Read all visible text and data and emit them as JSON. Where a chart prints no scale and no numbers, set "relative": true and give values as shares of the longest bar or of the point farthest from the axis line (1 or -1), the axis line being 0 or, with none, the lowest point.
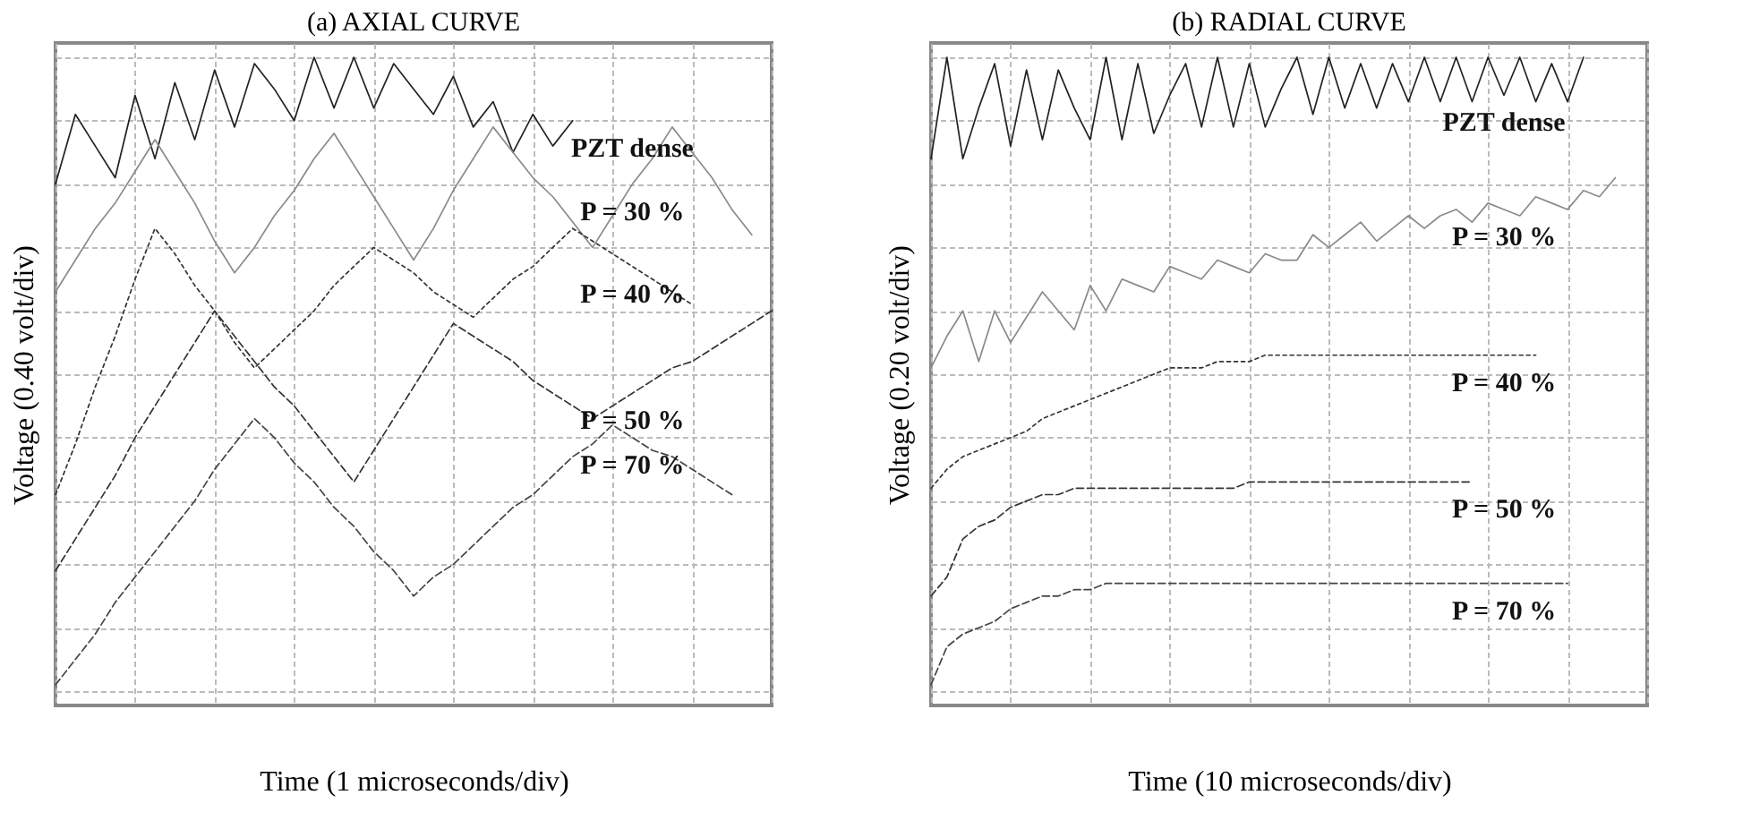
{
  "chart_data": [
    {
      "type": "line",
      "title": "(a)      AXIAL CURVE",
      "xlabel": "Time (1 microseconds/div)",
      "ylabel": "Voltage (0.40 volt/div)",
      "relative": true,
      "grid": true,
      "categories": [
        null,
        null,
        null,
        null,
        null,
        null,
        null,
        null,
        null,
        null,
        null,
        null,
        null,
        null,
        null,
        null,
        null,
        null,
        null,
        null,
        null,
        null,
        null,
        null,
        null,
        null,
        null,
        null,
        null,
        null,
        null,
        null,
        null,
        null,
        null,
        null,
        null
      ],
      "series": [
        {
          "name": "PZT dense",
          "color": "#222222",
          "line_style": "solid",
          "values": [
            0.8,
            0.91,
            0.86,
            0.81,
            0.94,
            0.84,
            0.96,
            0.87,
            0.98,
            0.89,
            0.99,
            0.95,
            0.9,
            1.0,
            0.92,
            1.0,
            0.92,
            0.99,
            0.95,
            0.91,
            0.97,
            0.89,
            0.93,
            0.85,
            0.91,
            0.86,
            0.9,
            null,
            null,
            null,
            null,
            null,
            null,
            null,
            null,
            null,
            null
          ]
        },
        {
          "name": "P = 30 %",
          "color": "#8a8a8a",
          "line_style": "solid",
          "values": [
            0.63,
            0.68,
            0.73,
            0.77,
            0.82,
            0.87,
            0.82,
            0.77,
            0.71,
            0.66,
            0.7,
            0.75,
            0.79,
            0.84,
            0.88,
            0.83,
            0.78,
            0.73,
            0.68,
            0.73,
            0.79,
            0.84,
            0.89,
            0.85,
            0.81,
            0.78,
            0.74,
            0.7,
            0.75,
            0.8,
            0.84,
            0.89,
            0.85,
            0.81,
            0.76,
            0.72,
            null
          ]
        },
        {
          "name": "P = 40 %",
          "color": "#333333",
          "line_style": "dotted",
          "values": [
            0.31,
            0.39,
            0.48,
            0.56,
            0.65,
            0.73,
            0.69,
            0.64,
            0.6,
            0.55,
            0.51,
            0.54,
            0.57,
            0.6,
            0.64,
            0.67,
            0.7,
            0.68,
            0.66,
            0.63,
            0.61,
            0.59,
            0.62,
            0.65,
            0.67,
            0.7,
            0.73,
            0.71,
            0.69,
            0.67,
            0.65,
            0.63,
            0.61,
            null,
            null,
            null,
            null
          ]
        },
        {
          "name": "P = 50 %",
          "color": "#333333",
          "line_style": "dashed",
          "values": [
            0.19,
            0.24,
            0.29,
            0.34,
            0.4,
            0.45,
            0.5,
            0.55,
            0.6,
            0.56,
            0.52,
            0.48,
            0.45,
            0.41,
            0.37,
            0.33,
            0.38,
            0.43,
            0.48,
            0.53,
            0.58,
            0.56,
            0.54,
            0.52,
            0.49,
            0.47,
            0.45,
            0.43,
            0.45,
            0.47,
            0.49,
            0.51,
            0.52,
            0.54,
            0.56,
            0.58,
            0.6
          ]
        },
        {
          "name": "P = 70 %",
          "color": "#444444",
          "line_style": "dashed",
          "values": [
            0.01,
            0.05,
            0.09,
            0.14,
            0.18,
            0.22,
            0.26,
            0.3,
            0.35,
            0.39,
            0.43,
            0.4,
            0.36,
            0.33,
            0.29,
            0.26,
            0.22,
            0.19,
            0.15,
            0.18,
            0.2,
            0.23,
            0.26,
            0.29,
            0.31,
            0.34,
            0.37,
            0.39,
            0.42,
            0.4,
            0.38,
            0.37,
            0.35,
            0.33,
            0.31,
            null,
            null
          ]
        }
      ],
      "legend": false
    },
    {
      "type": "line",
      "title": "(b)  RADIAL CURVE",
      "xlabel": "Time (10 microseconds/div)",
      "ylabel": "Voltage (0.20 volt/div)",
      "relative": true,
      "grid": true,
      "categories": [
        null,
        null,
        null,
        null,
        null,
        null,
        null,
        null,
        null,
        null,
        null,
        null,
        null,
        null,
        null,
        null,
        null,
        null,
        null,
        null,
        null,
        null,
        null,
        null,
        null,
        null,
        null,
        null,
        null,
        null,
        null,
        null,
        null,
        null,
        null,
        null,
        null,
        null,
        null,
        null,
        null,
        null,
        null,
        null,
        null,
        null
      ],
      "series": [
        {
          "name": "PZT dense",
          "color": "#222222",
          "line_style": "solid",
          "values": [
            0.84,
            1.0,
            0.84,
            0.92,
            0.99,
            0.86,
            0.98,
            0.87,
            0.98,
            0.92,
            0.87,
            1.0,
            0.87,
            0.99,
            0.88,
            0.94,
            0.99,
            0.89,
            1.0,
            0.89,
            0.99,
            0.89,
            0.95,
            1.0,
            0.91,
            1.0,
            0.92,
            0.99,
            0.92,
            0.99,
            0.93,
            1.0,
            0.93,
            1.0,
            0.93,
            1.0,
            0.94,
            1.0,
            0.93,
            0.99,
            0.93,
            1.0,
            null,
            null,
            null,
            null
          ]
        },
        {
          "name": "P = 30 %",
          "color": "#8a8a8a",
          "line_style": "solid",
          "values": [
            0.51,
            0.56,
            0.6,
            0.52,
            0.6,
            0.55,
            0.59,
            0.63,
            0.6,
            0.57,
            0.64,
            0.6,
            0.65,
            0.64,
            0.63,
            0.67,
            0.66,
            0.65,
            0.68,
            0.67,
            0.66,
            0.69,
            0.68,
            0.68,
            0.72,
            0.7,
            0.72,
            0.74,
            0.71,
            0.73,
            0.75,
            0.73,
            0.75,
            0.76,
            0.74,
            0.77,
            0.76,
            0.75,
            0.78,
            0.77,
            0.76,
            0.79,
            0.78,
            0.81,
            null,
            null
          ]
        },
        {
          "name": "P = 40 %",
          "color": "#333333",
          "line_style": "dotted",
          "values": [
            0.32,
            0.35,
            0.37,
            0.38,
            0.39,
            0.4,
            0.41,
            0.43,
            0.44,
            0.45,
            0.46,
            0.47,
            0.48,
            0.49,
            0.5,
            0.51,
            0.51,
            0.51,
            0.52,
            0.52,
            0.52,
            0.53,
            0.53,
            0.53,
            0.53,
            0.53,
            0.53,
            0.53,
            0.53,
            0.53,
            0.53,
            0.53,
            0.53,
            0.53,
            0.53,
            0.53,
            0.53,
            0.53,
            0.53,
            null,
            null,
            null,
            null,
            null,
            null,
            null
          ]
        },
        {
          "name": "P = 50 %",
          "color": "#333333",
          "line_style": "dashed",
          "values": [
            0.15,
            0.18,
            0.24,
            0.26,
            0.27,
            0.29,
            0.3,
            0.31,
            0.31,
            0.32,
            0.32,
            0.32,
            0.32,
            0.32,
            0.32,
            0.32,
            0.32,
            0.32,
            0.32,
            0.32,
            0.33,
            0.33,
            0.33,
            0.33,
            0.33,
            0.33,
            0.33,
            0.33,
            0.33,
            0.33,
            0.33,
            0.33,
            0.33,
            0.33,
            0.33,
            null,
            null,
            null,
            null,
            null,
            null,
            null,
            null,
            null,
            null,
            null
          ]
        },
        {
          "name": "P = 70 %",
          "color": "#444444",
          "line_style": "dashed",
          "values": [
            0.01,
            0.07,
            0.09,
            0.1,
            0.11,
            0.13,
            0.14,
            0.15,
            0.15,
            0.16,
            0.16,
            0.17,
            0.17,
            0.17,
            0.17,
            0.17,
            0.17,
            0.17,
            0.17,
            0.17,
            0.17,
            0.17,
            0.17,
            0.17,
            0.17,
            0.17,
            0.17,
            0.17,
            0.17,
            0.17,
            0.17,
            0.17,
            0.17,
            0.17,
            0.17,
            0.17,
            0.17,
            0.17,
            0.17,
            0.17,
            0.17,
            null,
            null,
            null,
            null,
            null
          ]
        }
      ],
      "legend": false
    }
  ]
}
